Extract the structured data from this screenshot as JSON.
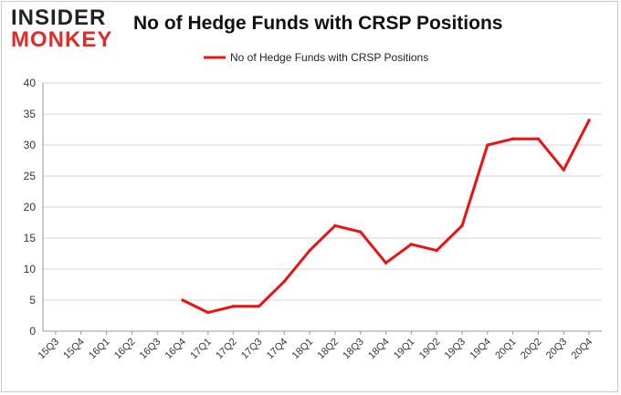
{
  "brand": {
    "logo_line1": "INSIDER",
    "logo_line2": "MONKEY",
    "logo_color": "#e22b26"
  },
  "chart_data": {
    "type": "line",
    "title": "No of Hedge Funds with CRSP Positions",
    "xlabel": "",
    "ylabel": "",
    "categories": [
      "15Q3",
      "15Q4",
      "16Q1",
      "16Q2",
      "16Q3",
      "16Q4",
      "17Q1",
      "17Q2",
      "17Q3",
      "17Q4",
      "18Q1",
      "18Q2",
      "18Q3",
      "18Q4",
      "19Q1",
      "19Q2",
      "19Q3",
      "19Q4",
      "20Q1",
      "20Q2",
      "20Q3",
      "20Q4"
    ],
    "series": [
      {
        "name": "No of Hedge Funds with CRSP Positions",
        "color": "#ee1111",
        "values": [
          null,
          null,
          null,
          null,
          null,
          5,
          3,
          4,
          4,
          8,
          13,
          17,
          16,
          11,
          14,
          13,
          17,
          30,
          31,
          31,
          26,
          34
        ]
      }
    ],
    "ylim": [
      0,
      40
    ],
    "yticks": [
      0,
      5,
      10,
      15,
      20,
      25,
      30,
      35,
      40
    ],
    "grid": true,
    "legend": "top-center"
  }
}
